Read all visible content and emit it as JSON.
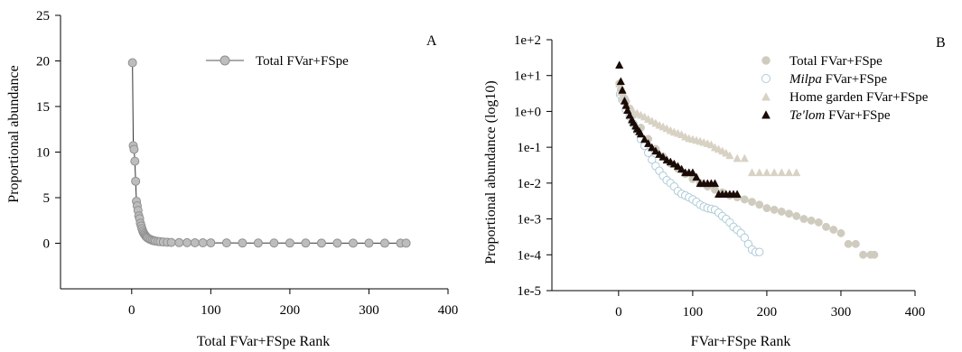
{
  "chart_data": [
    {
      "panel": "A",
      "type": "line",
      "xlabel": "Total FVar+FSpe Rank",
      "ylabel": "Proportional abundance",
      "xlim": [
        -90,
        400
      ],
      "ylim": [
        -5,
        25
      ],
      "x_ticks": [
        0,
        100,
        200,
        300,
        400
      ],
      "y_ticks": [
        0,
        5,
        10,
        15,
        20,
        25
      ],
      "grid": false,
      "legend_position": "top-center",
      "series": [
        {
          "name": "Total FVar+FSpe",
          "marker": "circle",
          "color": "#bdbdbd",
          "stroke": "#8f8f8f",
          "x": [
            1,
            2,
            3,
            4,
            5,
            6,
            7,
            8,
            9,
            10,
            11,
            12,
            13,
            14,
            15,
            16,
            17,
            18,
            19,
            20,
            22,
            24,
            26,
            28,
            30,
            33,
            36,
            40,
            45,
            50,
            60,
            70,
            80,
            90,
            100,
            120,
            140,
            160,
            180,
            200,
            220,
            240,
            260,
            280,
            300,
            320,
            340,
            347
          ],
          "y": [
            19.8,
            10.7,
            10.3,
            9.0,
            6.8,
            4.6,
            4.1,
            3.6,
            3.0,
            2.7,
            2.2,
            1.9,
            1.6,
            1.35,
            1.15,
            1.0,
            0.88,
            0.76,
            0.66,
            0.58,
            0.48,
            0.4,
            0.33,
            0.28,
            0.24,
            0.2,
            0.17,
            0.14,
            0.11,
            0.09,
            0.07,
            0.06,
            0.05,
            0.045,
            0.04,
            0.035,
            0.03,
            0.027,
            0.024,
            0.021,
            0.019,
            0.017,
            0.015,
            0.013,
            0.011,
            0.009,
            0.008,
            0.007
          ]
        }
      ]
    },
    {
      "panel": "B",
      "type": "scatter",
      "xlabel": "FVar+FSpe Rank",
      "ylabel": "Proportional abundance (log10)",
      "y_scale": "log10",
      "xlim": [
        -90,
        400
      ],
      "ylim": [
        1e-05,
        100
      ],
      "x_ticks": [
        0,
        100,
        200,
        300,
        400
      ],
      "y_tick_labels": [
        "1e-5",
        "1e-4",
        "1e-3",
        "1e-2",
        "1e-1",
        "1e+0",
        "1e+1",
        "1e+2"
      ],
      "grid": false,
      "legend_position": "top-right",
      "series": [
        {
          "name": "Total FVar+FSpe",
          "marker": "circle",
          "color": "#cfcbbf",
          "x": [
            1,
            3,
            5,
            8,
            10,
            15,
            20,
            30,
            40,
            50,
            60,
            70,
            80,
            90,
            100,
            110,
            120,
            130,
            140,
            150,
            160,
            170,
            180,
            190,
            200,
            210,
            220,
            230,
            240,
            250,
            260,
            270,
            280,
            290,
            300,
            310,
            320,
            330,
            340,
            345
          ],
          "y": [
            6,
            4,
            3.2,
            2.3,
            1.9,
            1.2,
            0.8,
            0.35,
            0.17,
            0.09,
            0.055,
            0.035,
            0.025,
            0.018,
            0.013,
            0.01,
            0.008,
            0.0065,
            0.0055,
            0.0045,
            0.004,
            0.0035,
            0.003,
            0.0025,
            0.002,
            0.0018,
            0.0016,
            0.0014,
            0.0012,
            0.001,
            0.0009,
            0.0008,
            0.0006,
            0.0005,
            0.0004,
            0.0002,
            0.0002,
            0.0001,
            0.0001,
            0.0001
          ]
        },
        {
          "name": "Milpa FVar+FSpe",
          "name_italic": "Milpa",
          "name_rest": " FVar+FSpe",
          "marker": "circle-open",
          "color": "#aecbd8",
          "x": [
            2,
            5,
            10,
            15,
            20,
            25,
            30,
            35,
            40,
            45,
            50,
            55,
            60,
            65,
            70,
            75,
            80,
            85,
            90,
            95,
            100,
            105,
            110,
            115,
            120,
            125,
            130,
            135,
            140,
            145,
            150,
            155,
            160,
            165,
            170,
            175,
            180,
            185,
            190
          ],
          "y": [
            3,
            2.1,
            1.1,
            0.72,
            0.45,
            0.28,
            0.17,
            0.11,
            0.07,
            0.045,
            0.03,
            0.022,
            0.016,
            0.012,
            0.01,
            0.008,
            0.006,
            0.005,
            0.0045,
            0.004,
            0.0035,
            0.003,
            0.0025,
            0.0022,
            0.002,
            0.0019,
            0.0018,
            0.0015,
            0.0012,
            0.001,
            0.0008,
            0.0006,
            0.0005,
            0.0004,
            0.0003,
            0.0002,
            0.00014,
            0.00012,
            0.00012
          ]
        },
        {
          "name": "Home garden FVar+FSpe",
          "marker": "triangle",
          "color": "#d8d2c4",
          "x": [
            1,
            3,
            5,
            10,
            15,
            20,
            25,
            30,
            35,
            40,
            45,
            50,
            55,
            60,
            65,
            70,
            75,
            80,
            85,
            90,
            95,
            100,
            105,
            110,
            115,
            120,
            125,
            130,
            135,
            140,
            145,
            150,
            160,
            170,
            180,
            190,
            200,
            210,
            220,
            230,
            240
          ],
          "y": [
            6,
            3.5,
            2.4,
            1.5,
            1.2,
            1.0,
            0.9,
            0.8,
            0.72,
            0.62,
            0.55,
            0.48,
            0.42,
            0.38,
            0.34,
            0.3,
            0.27,
            0.25,
            0.23,
            0.2,
            0.18,
            0.17,
            0.16,
            0.15,
            0.14,
            0.13,
            0.12,
            0.1,
            0.09,
            0.08,
            0.07,
            0.06,
            0.05,
            0.05,
            0.02,
            0.02,
            0.02,
            0.02,
            0.02,
            0.02,
            0.02
          ]
        },
        {
          "name": "Te'lom FVar+FSpe",
          "name_italic": "Te'lom",
          "name_rest": " FVar+FSpe",
          "marker": "triangle",
          "color": "#1a0b06",
          "x": [
            1,
            3,
            5,
            8,
            10,
            12,
            15,
            18,
            20,
            23,
            25,
            28,
            30,
            35,
            40,
            45,
            50,
            55,
            60,
            65,
            70,
            75,
            80,
            85,
            90,
            95,
            100,
            105,
            110,
            115,
            120,
            125,
            130,
            135,
            140,
            145,
            150,
            155,
            160
          ],
          "y": [
            20,
            7,
            4,
            2,
            1.5,
            1.1,
            0.8,
            0.6,
            0.5,
            0.4,
            0.33,
            0.28,
            0.24,
            0.17,
            0.13,
            0.1,
            0.08,
            0.065,
            0.055,
            0.045,
            0.04,
            0.035,
            0.03,
            0.025,
            0.02,
            0.02,
            0.02,
            0.015,
            0.01,
            0.01,
            0.01,
            0.01,
            0.01,
            0.005,
            0.005,
            0.005,
            0.005,
            0.005,
            0.005
          ]
        }
      ]
    }
  ]
}
